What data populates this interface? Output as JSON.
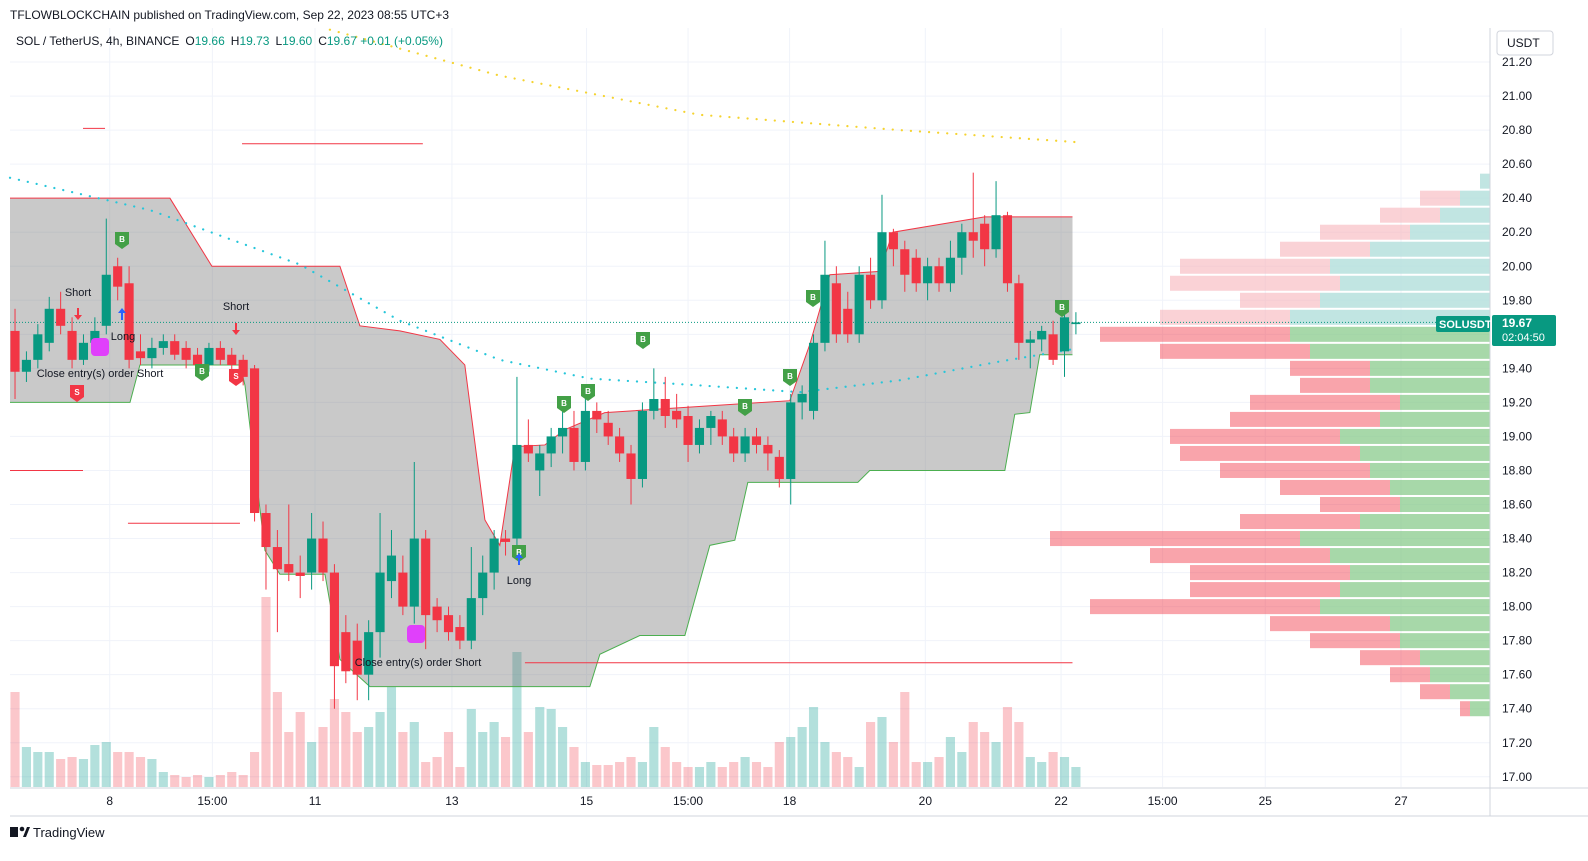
{
  "header": {
    "published": "TFLOWBLOCKCHAIN published on TradingView.com, Sep 22, 2023 08:55 UTC+3",
    "symbol": "SOL / TetherUS, 4h, BINANCE",
    "o_key": "O",
    "o": "19.66",
    "h_key": "H",
    "h": "19.73",
    "l_key": "L",
    "l": "19.60",
    "c_key": "C",
    "c": "19.67",
    "change": "+0.01 (+0.05%)",
    "currency": "USDT",
    "ticker": "SOLUSDT",
    "last_price": "19.67",
    "countdown": "02:04:50",
    "brand": "TradingView"
  },
  "chart_data": {
    "type": "candlestick",
    "up_color": "#089981",
    "down_color": "#f23645",
    "xlim": [
      -0.44,
      129.3
    ],
    "ylim": [
      16.94,
      21.4
    ],
    "xticks": [
      {
        "value": 8.3,
        "label": "8"
      },
      {
        "value": 17.3,
        "label": "15:00"
      },
      {
        "value": 26.3,
        "label": "11"
      },
      {
        "value": 38.3,
        "label": "13"
      },
      {
        "value": 50.1,
        "label": "15"
      },
      {
        "value": 59,
        "label": "15:00"
      },
      {
        "value": 67.9,
        "label": "18"
      },
      {
        "value": 79.8,
        "label": "20"
      },
      {
        "value": 91.7,
        "label": "22"
      },
      {
        "value": 100.6,
        "label": "15:00"
      },
      {
        "value": 109.6,
        "label": "25"
      },
      {
        "value": 121.5,
        "label": "27"
      }
    ],
    "yticks": [
      {
        "value": 17,
        "label": "17.00"
      },
      {
        "value": 17.2,
        "label": "17.20"
      },
      {
        "value": 17.4,
        "label": "17.40"
      },
      {
        "value": 17.6,
        "label": "17.60"
      },
      {
        "value": 17.8,
        "label": "17.80"
      },
      {
        "value": 18,
        "label": "18.00"
      },
      {
        "value": 18.2,
        "label": "18.20"
      },
      {
        "value": 18.4,
        "label": "18.40"
      },
      {
        "value": 18.6,
        "label": "18.60"
      },
      {
        "value": 18.8,
        "label": "18.80"
      },
      {
        "value": 19,
        "label": "19.00"
      },
      {
        "value": 19.2,
        "label": "19.20"
      },
      {
        "value": 19.4,
        "label": "19.40"
      },
      {
        "value": 19.6,
        "label": "19.60"
      },
      {
        "value": 19.8,
        "label": "19.80"
      },
      {
        "value": 20,
        "label": "20.00"
      },
      {
        "value": 20.2,
        "label": "20.20"
      },
      {
        "value": 20.4,
        "label": "20.40"
      },
      {
        "value": 20.6,
        "label": "20.60"
      },
      {
        "value": 20.8,
        "label": "20.80"
      },
      {
        "value": 21,
        "label": "21.00"
      },
      {
        "value": 21.2,
        "label": "21.20"
      }
    ],
    "grid": true,
    "open": [
      19.62,
      19.38,
      19.45,
      19.55,
      19.75,
      19.62,
      19.45,
      19.55,
      19.65,
      20.0,
      19.9,
      19.5,
      19.46,
      19.52,
      19.56,
      19.52,
      19.48,
      19.42,
      19.52,
      19.48,
      19.45,
      19.4,
      18.55,
      18.35,
      18.25,
      18.2,
      18.2,
      18.4,
      18.2,
      17.85,
      17.8,
      17.6,
      17.85,
      18.15,
      18.2,
      18.0,
      18.4,
      18.0,
      17.95,
      17.88,
      17.8,
      18.05,
      18.2,
      18.4,
      18.4,
      18.95,
      18.8,
      18.9,
      19.0,
      19.05,
      18.85,
      19.15,
      19.08,
      19.0,
      18.9,
      18.75,
      19.15,
      19.22,
      19.15,
      19.12,
      18.95,
      19.05,
      19.1,
      19.0,
      18.9,
      19.0,
      18.95,
      18.88,
      18.75,
      19.2,
      19.15,
      19.55,
      19.9,
      19.75,
      19.6,
      19.95,
      19.8,
      20.2,
      20.1,
      20.05,
      19.9,
      20.0,
      19.9,
      20.05,
      20.2,
      20.25,
      20.1,
      20.3,
      19.9,
      19.55,
      19.57,
      19.6,
      19.5,
      19.66
    ],
    "high": [
      19.75,
      19.5,
      19.66,
      19.82,
      19.85,
      19.7,
      19.6,
      19.7,
      20.28,
      20.05,
      20.0,
      19.6,
      19.58,
      19.6,
      19.6,
      19.56,
      19.52,
      19.55,
      19.56,
      19.52,
      19.48,
      19.42,
      18.6,
      18.45,
      18.6,
      18.3,
      18.55,
      18.5,
      18.25,
      17.95,
      17.9,
      17.92,
      18.55,
      18.45,
      18.3,
      18.85,
      18.45,
      18.05,
      18.0,
      17.95,
      18.35,
      18.3,
      18.45,
      18.45,
      19.35,
      19.1,
      18.95,
      19.05,
      19.2,
      19.15,
      19.25,
      19.2,
      19.15,
      19.05,
      18.95,
      19.2,
      19.4,
      19.35,
      19.25,
      19.18,
      19.1,
      19.15,
      19.15,
      19.05,
      19.05,
      19.05,
      19.0,
      18.92,
      19.25,
      19.3,
      19.6,
      20.15,
      20.0,
      19.85,
      20.0,
      20.05,
      20.42,
      20.22,
      20.15,
      20.1,
      20.05,
      20.05,
      20.15,
      20.25,
      20.55,
      20.3,
      20.5,
      20.32,
      19.95,
      19.62,
      19.65,
      19.68,
      19.75,
      19.73
    ],
    "low": [
      19.22,
      19.32,
      19.4,
      19.5,
      19.6,
      19.4,
      19.42,
      19.5,
      19.6,
      19.8,
      19.4,
      19.42,
      19.4,
      19.48,
      19.45,
      19.4,
      19.38,
      19.38,
      19.42,
      19.38,
      19.3,
      18.5,
      18.1,
      17.85,
      18.15,
      18.05,
      18.1,
      18.15,
      17.4,
      17.55,
      17.45,
      17.45,
      17.7,
      18.05,
      17.95,
      17.9,
      17.75,
      17.85,
      17.8,
      17.75,
      17.75,
      17.95,
      18.1,
      18.3,
      18.35,
      18.85,
      18.65,
      18.82,
      18.9,
      18.8,
      18.8,
      19.02,
      18.95,
      18.85,
      18.6,
      18.7,
      19.1,
      19.05,
      19.05,
      18.85,
      18.9,
      18.95,
      18.95,
      18.85,
      18.85,
      18.9,
      18.8,
      18.7,
      18.6,
      19.1,
      19.1,
      19.5,
      19.55,
      19.55,
      19.55,
      19.75,
      19.75,
      20.0,
      19.85,
      19.85,
      19.8,
      19.85,
      19.85,
      19.95,
      20.05,
      20.0,
      20.05,
      19.85,
      19.45,
      19.4,
      19.5,
      19.42,
      19.35,
      19.6
    ],
    "close": [
      19.38,
      19.45,
      19.6,
      19.75,
      19.65,
      19.45,
      19.55,
      19.62,
      19.95,
      19.88,
      19.45,
      19.46,
      19.52,
      19.56,
      19.48,
      19.45,
      19.42,
      19.52,
      19.45,
      19.42,
      19.35,
      18.55,
      18.35,
      18.22,
      18.2,
      18.18,
      18.4,
      18.2,
      17.65,
      17.62,
      17.6,
      17.85,
      18.2,
      18.3,
      18.0,
      18.4,
      17.95,
      17.92,
      17.85,
      17.8,
      18.05,
      18.2,
      18.4,
      18.38,
      18.95,
      18.9,
      18.9,
      19.0,
      19.05,
      18.85,
      19.15,
      19.1,
      19.0,
      18.9,
      18.75,
      19.15,
      19.22,
      19.12,
      19.1,
      18.95,
      19.05,
      19.12,
      19.0,
      18.9,
      19.0,
      18.95,
      18.9,
      18.75,
      19.2,
      19.25,
      19.55,
      19.95,
      19.6,
      19.6,
      19.95,
      19.8,
      20.2,
      20.1,
      19.95,
      19.9,
      20.0,
      19.9,
      20.05,
      20.2,
      20.15,
      20.1,
      20.3,
      19.9,
      19.55,
      19.57,
      19.62,
      19.45,
      19.7,
      19.67
    ],
    "volume": [
      95,
      40,
      35,
      35,
      28,
      30,
      28,
      42,
      45,
      35,
      35,
      30,
      28,
      15,
      12,
      10,
      12,
      10,
      12,
      15,
      12,
      35,
      190,
      95,
      55,
      75,
      45,
      60,
      88,
      75,
      55,
      60,
      75,
      100,
      55,
      65,
      25,
      30,
      55,
      20,
      78,
      55,
      65,
      50,
      135,
      55,
      80,
      78,
      60,
      40,
      25,
      22,
      22,
      25,
      30,
      25,
      60,
      40,
      25,
      20,
      20,
      25,
      20,
      25,
      30,
      25,
      20,
      45,
      50,
      60,
      80,
      45,
      35,
      30,
      20,
      65,
      70,
      45,
      95,
      25,
      25,
      30,
      50,
      35,
      65,
      55,
      45,
      80,
      65,
      30,
      25,
      35,
      30,
      20
    ],
    "channel": {
      "upper": {
        "x": [
          -0.44,
          13.58,
          17.26,
          28.48,
          30.23,
          33.74,
          37.25,
          39.43,
          41.19,
          42.5,
          43.82,
          46.45,
          48.2,
          51.7,
          67.92,
          69.67,
          71.43,
          75.8,
          76.95,
          85.0,
          92.7
        ],
        "y": [
          20.4,
          20.4,
          20.0,
          20.0,
          19.65,
          19.62,
          19.57,
          19.42,
          18.51,
          18.36,
          18.94,
          18.95,
          19.04,
          19.14,
          19.21,
          19.54,
          19.95,
          19.97,
          20.2,
          20.29,
          20.29
        ]
      },
      "lower": {
        "x": [
          -0.44,
          10.08,
          10.95,
          19.72,
          20.16,
          21.91,
          23.22,
          27.17,
          28.48,
          31.11,
          50.39,
          51.27,
          54.77,
          58.72,
          60.91,
          63.1,
          64.24,
          73.88,
          74.93,
          86.77,
          87.64,
          88.96,
          89.83,
          92.7
        ],
        "y": [
          19.2,
          19.2,
          19.42,
          19.42,
          19.3,
          18.33,
          18.19,
          18.19,
          17.69,
          17.53,
          17.53,
          17.72,
          17.83,
          17.83,
          18.36,
          18.39,
          18.73,
          18.73,
          18.8,
          18.8,
          19.13,
          19.14,
          19.48,
          19.48
        ]
      }
    },
    "ma_slow": {
      "color": "#f5d330",
      "x": [
        27.6,
        42.5,
        60.0,
        77.56,
        92.9
      ],
      "y": [
        21.39,
        21.12,
        20.89,
        20.8,
        20.73
      ]
    },
    "ma_fast": {
      "color": "#26c6da",
      "x": [
        -0.44,
        11.83,
        24.98,
        33.74,
        42.5,
        50.39,
        60.0,
        68.8,
        77.56,
        86.3,
        92.5
      ],
      "y": [
        20.52,
        20.33,
        20.01,
        19.68,
        19.45,
        19.34,
        19.3,
        19.26,
        19.33,
        19.44,
        19.51
      ]
    },
    "levels": {
      "price": [
        20.81,
        20.72,
        18.8,
        18.49,
        17.67
      ],
      "x0": [
        5.96,
        19.9,
        -0.44,
        9.9,
        44.7
      ],
      "x1": [
        7.89,
        35.75,
        5.96,
        19.72,
        92.7
      ]
    },
    "profile": {
      "price": [
        17.4,
        17.5,
        17.6,
        17.7,
        17.8,
        17.9,
        18.0,
        18.1,
        18.2,
        18.3,
        18.4,
        18.5,
        18.6,
        18.7,
        18.8,
        18.9,
        19.0,
        19.1,
        19.2,
        19.3,
        19.4,
        19.5,
        19.6,
        19.7,
        19.8,
        19.9,
        20.0,
        20.1,
        20.2,
        20.3,
        20.4,
        20.5
      ],
      "up": [
        20,
        40,
        60,
        70,
        90,
        100,
        170,
        150,
        140,
        160,
        190,
        130,
        90,
        100,
        120,
        130,
        150,
        110,
        90,
        120,
        120,
        180,
        200,
        200,
        170,
        150,
        160,
        120,
        80,
        50,
        30,
        10
      ],
      "down": [
        10,
        30,
        40,
        60,
        90,
        120,
        230,
        150,
        160,
        180,
        250,
        120,
        80,
        110,
        150,
        180,
        170,
        150,
        150,
        70,
        80,
        150,
        190,
        130,
        80,
        170,
        150,
        90,
        90,
        60,
        40,
        0
      ]
    },
    "signal_labels": {
      "buy": "B",
      "sell": "S"
    },
    "annotations": [
      "Short",
      "Long",
      "Short",
      "Close entry(s) order Short",
      "Close entry(s) order Short",
      "Long"
    ]
  }
}
